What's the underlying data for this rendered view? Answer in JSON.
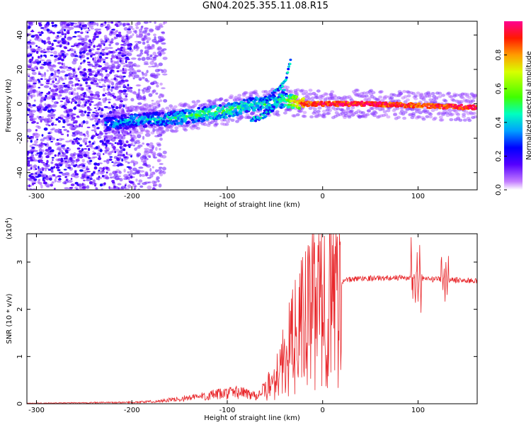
{
  "title": "GN04.2025.355.11.08.R15",
  "chart_data": [
    {
      "type": "heatmap",
      "xlabel": "Height of straight line (km)",
      "ylabel": "Frequency (Hz)",
      "xlim": [
        -310,
        162
      ],
      "ylim": [
        -50,
        48
      ],
      "x_ticks": [
        -300,
        -200,
        -100,
        0,
        100
      ],
      "y_ticks": [
        -40,
        -20,
        0,
        20,
        40
      ],
      "colorbar": {
        "label": "Normalized spectral amplitude",
        "range": [
          0,
          1
        ],
        "ticks": [
          "0.0",
          "0.2",
          "0.4",
          "0.6",
          "0.8"
        ]
      },
      "ridge": [
        {
          "x": -225,
          "f": -12,
          "amp": 0.35
        },
        {
          "x": -200,
          "f": -10,
          "amp": 0.38
        },
        {
          "x": -175,
          "f": -9,
          "amp": 0.4
        },
        {
          "x": -150,
          "f": -8,
          "amp": 0.45
        },
        {
          "x": -125,
          "f": -6,
          "amp": 0.5
        },
        {
          "x": -100,
          "f": -4,
          "amp": 0.5
        },
        {
          "x": -80,
          "f": -1,
          "amp": 0.45
        },
        {
          "x": -60,
          "f": 0,
          "amp": 0.45
        },
        {
          "x": -40,
          "f": 2,
          "amp": 0.5
        },
        {
          "x": -20,
          "f": 0,
          "amp": 0.9
        },
        {
          "x": 0,
          "f": 0,
          "amp": 0.95
        },
        {
          "x": 50,
          "f": 0,
          "amp": 0.95
        },
        {
          "x": 100,
          "f": -1,
          "amp": 0.9
        },
        {
          "x": 150,
          "f": -2,
          "amp": 0.95
        }
      ]
    },
    {
      "type": "line",
      "xlabel": "Height of straight line (km)",
      "ylabel": "SNR (10 * v/v)",
      "yscale_label": "(x10",
      "yscale_exponent": "4",
      "xlim": [
        -310,
        162
      ],
      "ylim": [
        0,
        3.6
      ],
      "x_ticks": [
        -300,
        -200,
        -100,
        0,
        100
      ],
      "y_ticks": [
        0,
        1,
        2,
        3
      ],
      "color": "#e8262a",
      "envelope": [
        {
          "x": -310,
          "v": 0.01
        },
        {
          "x": -250,
          "v": 0.02
        },
        {
          "x": -200,
          "v": 0.03
        },
        {
          "x": -175,
          "v": 0.05
        },
        {
          "x": -150,
          "v": 0.1
        },
        {
          "x": -125,
          "v": 0.16
        },
        {
          "x": -100,
          "v": 0.22
        },
        {
          "x": -90,
          "v": 0.25
        },
        {
          "x": -80,
          "v": 0.22
        },
        {
          "x": -70,
          "v": 0.18
        },
        {
          "x": -60,
          "v": 0.3
        },
        {
          "x": -50,
          "v": 0.6
        },
        {
          "x": -40,
          "v": 1.0
        },
        {
          "x": -30,
          "v": 1.5
        },
        {
          "x": -20,
          "v": 1.9
        },
        {
          "x": -10,
          "v": 2.2
        },
        {
          "x": 0,
          "v": 2.4
        },
        {
          "x": 10,
          "v": 2.5
        },
        {
          "x": 20,
          "v": 2.6
        },
        {
          "x": 40,
          "v": 2.66
        },
        {
          "x": 60,
          "v": 2.66
        },
        {
          "x": 80,
          "v": 2.67
        },
        {
          "x": 100,
          "v": 2.65
        },
        {
          "x": 120,
          "v": 2.63
        },
        {
          "x": 140,
          "v": 2.62
        },
        {
          "x": 162,
          "v": 2.6
        }
      ]
    }
  ]
}
